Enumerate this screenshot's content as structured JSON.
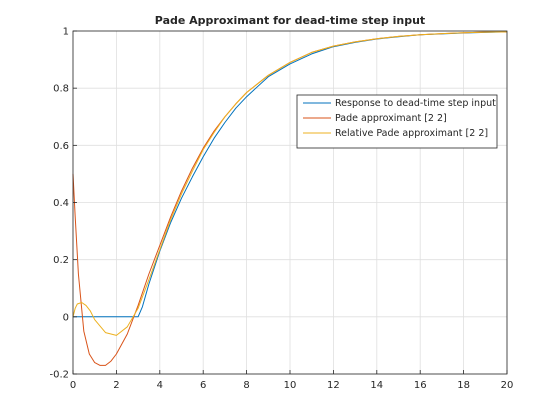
{
  "chart_data": {
    "type": "line",
    "title": "Pade Approximant for dead-time step input",
    "xlabel": "",
    "ylabel": "",
    "xlim": [
      0,
      20
    ],
    "ylim": [
      -0.2,
      1
    ],
    "xticks": [
      0,
      2,
      4,
      6,
      8,
      10,
      12,
      14,
      16,
      18,
      20
    ],
    "yticks": [
      -0.2,
      0,
      0.2,
      0.4,
      0.6,
      0.8,
      1
    ],
    "grid": true,
    "legend_position": "right",
    "series": [
      {
        "name": "Response to dead-time step input",
        "color": "#0072bd",
        "x": [
          0,
          1,
          2,
          3,
          3.2,
          3.5,
          4,
          4.5,
          5,
          5.5,
          6,
          6.5,
          7,
          7.5,
          8,
          9,
          10,
          11,
          12,
          13,
          14,
          15,
          16,
          17,
          18,
          19,
          20
        ],
        "y": [
          0,
          0,
          0,
          0,
          0.035,
          0.115,
          0.23,
          0.33,
          0.415,
          0.49,
          0.56,
          0.625,
          0.68,
          0.73,
          0.77,
          0.84,
          0.885,
          0.92,
          0.945,
          0.96,
          0.972,
          0.98,
          0.987,
          0.99,
          0.993,
          0.995,
          0.997
        ]
      },
      {
        "name": "Pade approximant [2 2]",
        "color": "#d95319",
        "x": [
          0,
          0.1,
          0.25,
          0.5,
          0.75,
          1,
          1.25,
          1.5,
          1.75,
          2,
          2.5,
          3,
          3.5,
          4,
          4.5,
          5,
          5.5,
          6,
          6.5,
          7,
          7.5,
          8,
          9,
          10,
          11,
          12,
          13,
          14,
          15,
          16,
          17,
          18,
          19,
          20
        ],
        "y": [
          0.5,
          0.35,
          0.15,
          -0.05,
          -0.13,
          -0.16,
          -0.17,
          -0.17,
          -0.155,
          -0.13,
          -0.06,
          0.04,
          0.15,
          0.25,
          0.35,
          0.44,
          0.52,
          0.59,
          0.65,
          0.7,
          0.745,
          0.785,
          0.845,
          0.89,
          0.925,
          0.947,
          0.962,
          0.973,
          0.981,
          0.987,
          0.991,
          0.994,
          0.996,
          0.997
        ]
      },
      {
        "name": "Relative Pade approximant [2 2]",
        "color": "#edb120",
        "x": [
          0,
          0.1,
          0.2,
          0.4,
          0.6,
          0.8,
          1,
          1.5,
          2,
          2.5,
          3,
          3.5,
          4,
          4.5,
          5,
          5.5,
          6,
          6.5,
          7,
          7.5,
          8,
          9,
          10,
          11,
          12,
          13,
          14,
          15,
          16,
          17,
          18,
          19,
          20
        ],
        "y": [
          0,
          0.03,
          0.045,
          0.05,
          0.04,
          0.02,
          -0.01,
          -0.055,
          -0.065,
          -0.035,
          0.03,
          0.13,
          0.235,
          0.34,
          0.43,
          0.51,
          0.585,
          0.645,
          0.7,
          0.745,
          0.785,
          0.845,
          0.89,
          0.925,
          0.947,
          0.962,
          0.973,
          0.981,
          0.987,
          0.991,
          0.994,
          0.996,
          0.997
        ]
      }
    ]
  }
}
